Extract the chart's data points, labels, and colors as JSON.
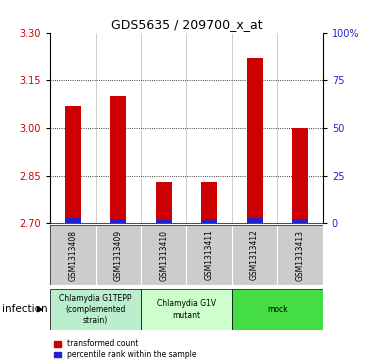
{
  "title": "GDS5635 / 209700_x_at",
  "samples": [
    "GSM1313408",
    "GSM1313409",
    "GSM1313410",
    "GSM1313411",
    "GSM1313412",
    "GSM1313413"
  ],
  "red_values": [
    3.07,
    3.1,
    2.83,
    2.83,
    3.22,
    3.0
  ],
  "blue_values": [
    2.716,
    2.714,
    2.711,
    2.713,
    2.716,
    2.712
  ],
  "y_min": 2.7,
  "y_max": 3.3,
  "y_ticks": [
    2.7,
    2.85,
    3.0,
    3.15,
    3.3
  ],
  "y_right_labels": [
    "0",
    "25",
    "50",
    "75",
    "100%"
  ],
  "gridlines": [
    2.85,
    3.0,
    3.15
  ],
  "bar_width": 0.35,
  "red_color": "#cc0000",
  "blue_color": "#2222cc",
  "infection_label": "infection",
  "legend_red": "transformed count",
  "legend_blue": "percentile rank within the sample",
  "tick_label_color_left": "#cc0000",
  "tick_label_color_right": "#2222cc",
  "group_info": [
    {
      "label": "Chlamydia G1TEPP\n(complemented\nstrain)",
      "color": "#bbeecc",
      "start": 0,
      "end": 1
    },
    {
      "label": "Chlamydia G1V\nmutant",
      "color": "#ccffcc",
      "start": 2,
      "end": 3
    },
    {
      "label": "mock",
      "color": "#44dd44",
      "start": 4,
      "end": 5
    }
  ]
}
